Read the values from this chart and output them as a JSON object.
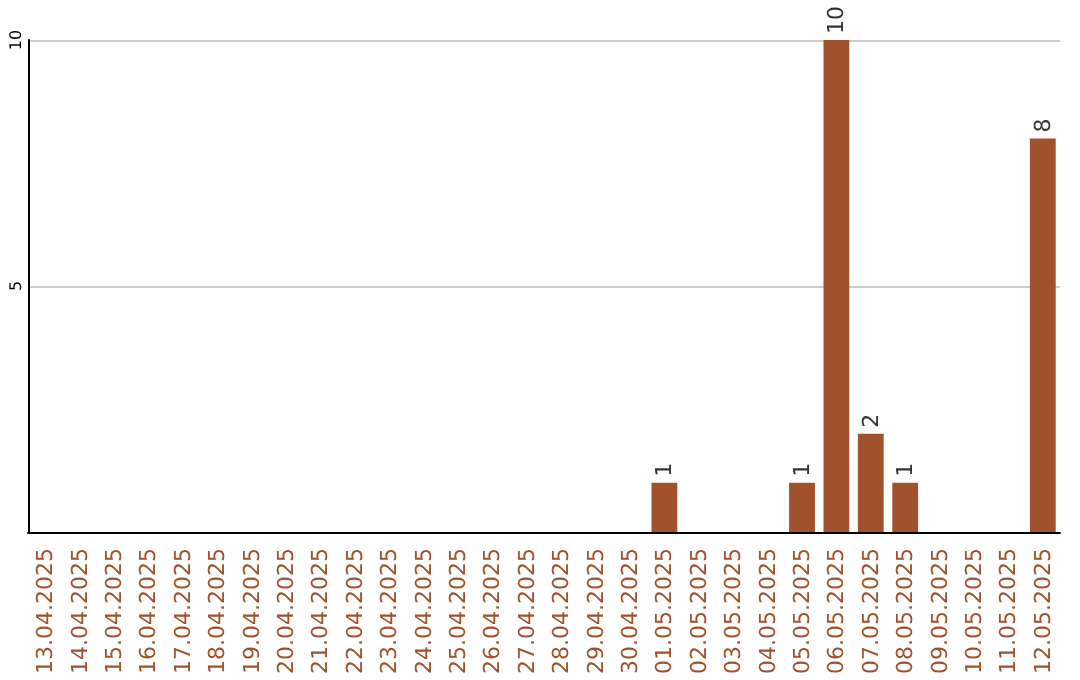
{
  "chart_data": {
    "type": "bar",
    "categories": [
      "13.04.2025",
      "14.04.2025",
      "15.04.2025",
      "16.04.2025",
      "17.04.2025",
      "18.04.2025",
      "19.04.2025",
      "20.04.2025",
      "21.04.2025",
      "22.04.2025",
      "23.04.2025",
      "24.04.2025",
      "25.04.2025",
      "26.04.2025",
      "27.04.2025",
      "28.04.2025",
      "29.04.2025",
      "30.04.2025",
      "01.05.2025",
      "02.05.2025",
      "03.05.2025",
      "04.05.2025",
      "05.05.2025",
      "06.05.2025",
      "07.05.2025",
      "08.05.2025",
      "09.05.2025",
      "10.05.2025",
      "11.05.2025",
      "12.05.2025"
    ],
    "values": [
      0,
      0,
      0,
      0,
      0,
      0,
      0,
      0,
      0,
      0,
      0,
      0,
      0,
      0,
      0,
      0,
      0,
      0,
      1,
      0,
      0,
      0,
      1,
      10,
      2,
      1,
      0,
      0,
      0,
      8
    ],
    "value_labels": [
      null,
      null,
      null,
      null,
      null,
      null,
      null,
      null,
      null,
      null,
      null,
      null,
      null,
      null,
      null,
      null,
      null,
      null,
      "1",
      null,
      null,
      null,
      "1",
      "10",
      "2",
      "1",
      null,
      null,
      null,
      "8"
    ],
    "color": "#a0522d",
    "ylim": [
      0,
      10
    ],
    "yticks": [
      5,
      10
    ],
    "grid": "y"
  }
}
